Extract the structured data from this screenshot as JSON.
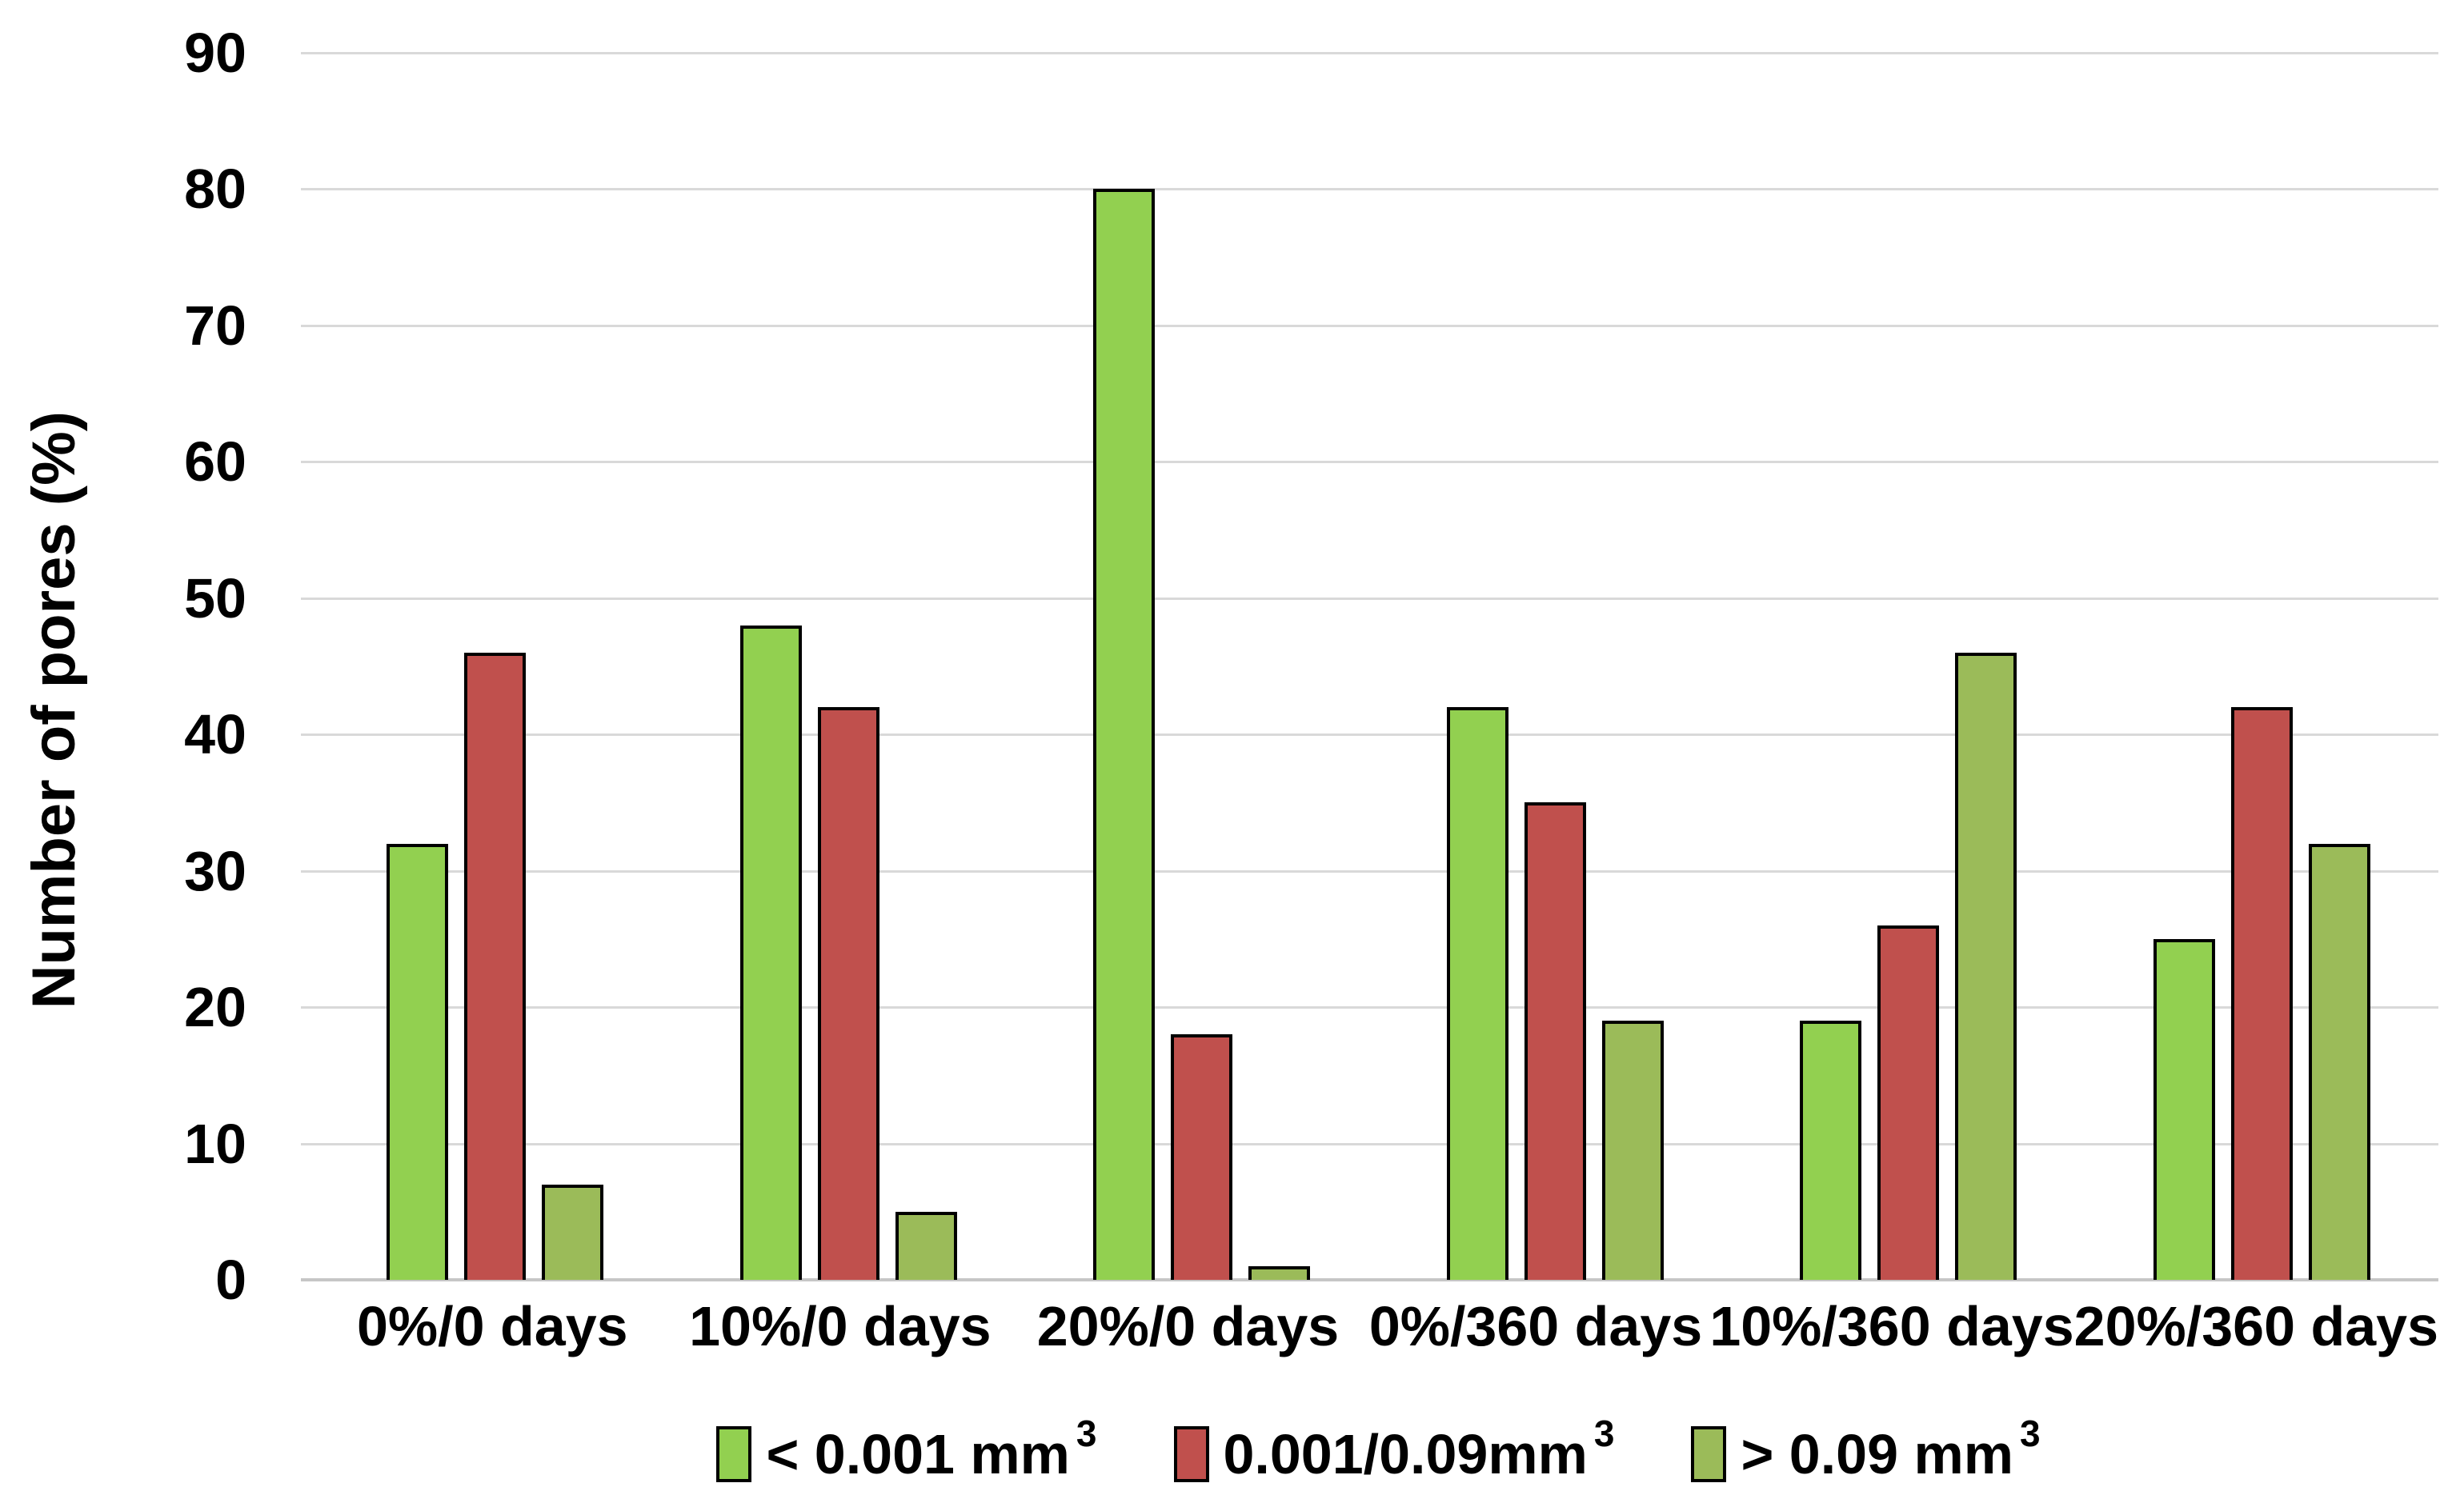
{
  "chart_data": {
    "type": "bar",
    "title": "",
    "xlabel": "",
    "ylabel": "Number of pores (%)",
    "ylim": [
      0,
      90
    ],
    "ytick_step": 10,
    "yticks": [
      0,
      10,
      20,
      30,
      40,
      50,
      60,
      70,
      80,
      90
    ],
    "grid": true,
    "legend_position": "bottom",
    "categories": [
      "0%/0 days",
      "10%/0 days",
      "20%/0 days",
      "0%/360 days",
      "10%/360 days",
      "20%/360 days"
    ],
    "series": [
      {
        "name": "< 0.001 mm³",
        "label_base": "< 0.001 mm",
        "label_sup": "3",
        "color": "#92D050",
        "border_color": "#000000",
        "values": [
          32,
          48,
          80,
          42,
          19,
          25
        ]
      },
      {
        "name": "0.001/0.09mm³",
        "label_base": "0.001/0.09mm",
        "label_sup": "3",
        "color": "#C0504D",
        "border_color": "#000000",
        "values": [
          46,
          42,
          18,
          35,
          26,
          42
        ]
      },
      {
        "name": "> 0.09 mm³",
        "label_base": "> 0.09 mm",
        "label_sup": "3",
        "color": "#9BBB59",
        "border_color": "#000000",
        "values": [
          7,
          5,
          1,
          19,
          46,
          32
        ]
      }
    ],
    "colors": {
      "background": "#FFFFFF",
      "gridline": "#D9D9D9",
      "baseline": "#C6C6C6",
      "axis_text": "#000000"
    }
  }
}
